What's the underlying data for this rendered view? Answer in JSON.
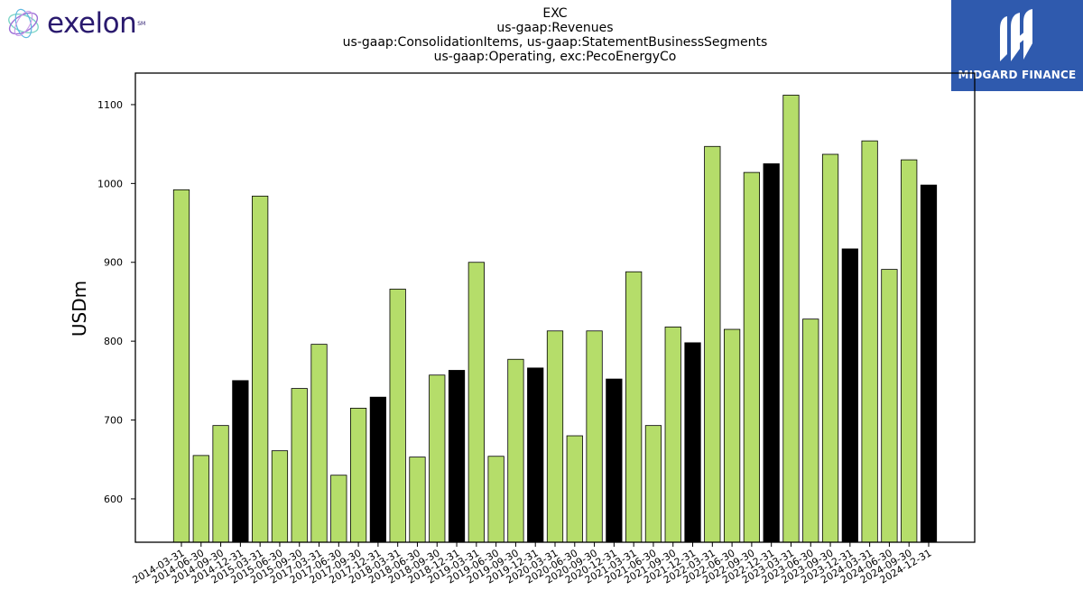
{
  "logos": {
    "left_brand": "exelon",
    "left_mark": "SM",
    "right_brand": "MIDGARD FINANCE"
  },
  "colors": {
    "bar_default": "#b5dd6a",
    "bar_q4": "#000000",
    "right_logo_bg": "#2f5aae",
    "left_brand_text": "#2a1a6e"
  },
  "chart_data": {
    "type": "bar",
    "title_lines": [
      "EXC",
      "us-gaap:Revenues",
      "us-gaap:ConsolidationItems, us-gaap:StatementBusinessSegments",
      "us-gaap:Operating, exc:PecoEnergyCo"
    ],
    "xlabel": "",
    "ylabel": "USDm",
    "ylim": [
      545,
      1140
    ],
    "yticks": [
      600,
      700,
      800,
      900,
      1000,
      1100
    ],
    "grid": false,
    "categories": [
      "2014-03-31",
      "2014-06-30",
      "2014-09-30",
      "2014-12-31",
      "2015-03-31",
      "2015-06-30",
      "2015-09-30",
      "2017-03-31",
      "2017-06-30",
      "2017-09-30",
      "2017-12-31",
      "2018-03-31",
      "2018-06-30",
      "2018-09-30",
      "2018-12-31",
      "2019-03-31",
      "2019-06-30",
      "2019-09-30",
      "2019-12-31",
      "2020-03-31",
      "2020-06-30",
      "2020-09-30",
      "2020-12-31",
      "2021-03-31",
      "2021-06-30",
      "2021-09-30",
      "2021-12-31",
      "2022-03-31",
      "2022-06-30",
      "2022-09-30",
      "2022-12-31",
      "2023-03-31",
      "2023-06-30",
      "2023-09-30",
      "2023-12-31",
      "2024-03-31",
      "2024-06-30",
      "2024-09-30",
      "2024-12-31"
    ],
    "values": [
      992,
      655,
      693,
      750,
      984,
      661,
      740,
      796,
      630,
      715,
      729,
      866,
      653,
      757,
      763,
      900,
      654,
      777,
      766,
      813,
      680,
      813,
      752,
      888,
      693,
      818,
      798,
      1047,
      815,
      1014,
      1025,
      1112,
      828,
      1037,
      917,
      1054,
      891,
      1030,
      998
    ]
  }
}
